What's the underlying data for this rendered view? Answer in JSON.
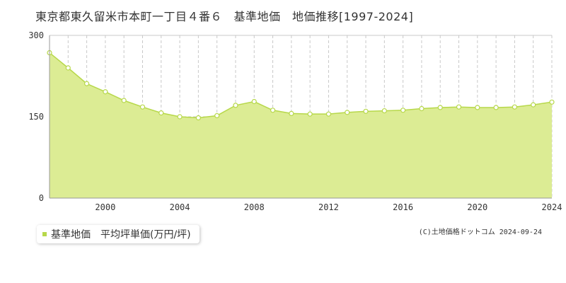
{
  "title": "東京都東久留米市本町一丁目４番６　基準地価　地価推移[1997-2024]",
  "legend": {
    "label": "基準地価　平均坪単価(万円/坪)",
    "color": "#b7d84a"
  },
  "copyright": "(C)土地価格ドットコム  2024-09-24",
  "colors": {
    "area_fill": "#dcec94",
    "line": "#b7d84a",
    "grid": "#c8c8c8",
    "point_fill": "#ffffff"
  },
  "chart_data": {
    "type": "area",
    "title": "",
    "xlabel": "",
    "ylabel": "",
    "x": [
      1997,
      1998,
      1999,
      2000,
      2001,
      2002,
      2003,
      2004,
      2005,
      2006,
      2007,
      2008,
      2009,
      2010,
      2011,
      2012,
      2013,
      2014,
      2015,
      2016,
      2017,
      2018,
      2019,
      2020,
      2021,
      2022,
      2023,
      2024
    ],
    "series": [
      {
        "name": "基準地価　平均坪単価(万円/坪)",
        "values": [
          268,
          240,
          211,
          196,
          180,
          168,
          157,
          150,
          148,
          152,
          171,
          178,
          162,
          156,
          155,
          155,
          158,
          160,
          161,
          162,
          165,
          167,
          168,
          167,
          167,
          168,
          172,
          177
        ]
      }
    ],
    "xlim": [
      1997,
      2024
    ],
    "ylim": [
      0,
      300
    ],
    "x_ticks": [
      2000,
      2004,
      2008,
      2012,
      2016,
      2020,
      2024
    ],
    "y_ticks": [
      0,
      150,
      300
    ],
    "grid": true
  }
}
